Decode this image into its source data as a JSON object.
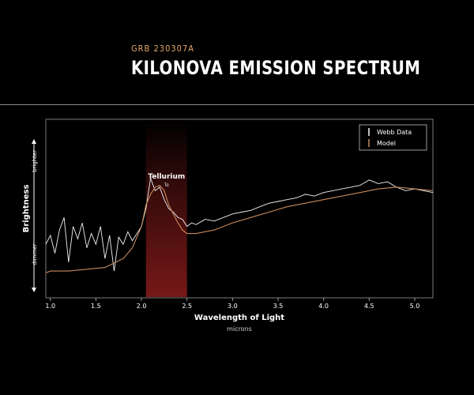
{
  "header": {
    "subtitle": "GRB 230307A",
    "title": "KILONOVA EMISSION SPECTRUM"
  },
  "colors": {
    "background": "#000000",
    "webb_data": "#ffffff",
    "model": "#c98a5c",
    "tellurium_band": "#8b1c1c"
  },
  "chart_data": {
    "type": "line",
    "xlabel": "Wavelength of Light",
    "xlabel_units": "microns",
    "ylabel": "Brightness",
    "ylabel_high": "brighter",
    "ylabel_low": "dimmer",
    "xlim": [
      0.95,
      5.2
    ],
    "ylim": [
      0,
      1
    ],
    "x_ticks": [
      "1.0",
      "1.5",
      "2.0",
      "2.5",
      "3.0",
      "3.5",
      "4.0",
      "4.5",
      "5.0"
    ],
    "grid": false,
    "legend_position": "top-right",
    "annotation": {
      "label": "Tellurium",
      "symbol": "Te",
      "x_range": [
        2.05,
        2.5
      ]
    },
    "series": [
      {
        "name": "Webb Data",
        "x": [
          0.95,
          1.0,
          1.05,
          1.1,
          1.15,
          1.2,
          1.25,
          1.3,
          1.35,
          1.4,
          1.45,
          1.5,
          1.55,
          1.6,
          1.65,
          1.7,
          1.75,
          1.8,
          1.85,
          1.9,
          1.95,
          2.0,
          2.05,
          2.1,
          2.15,
          2.2,
          2.25,
          2.3,
          2.35,
          2.4,
          2.45,
          2.5,
          2.55,
          2.6,
          2.7,
          2.8,
          2.9,
          3.0,
          3.1,
          3.2,
          3.3,
          3.4,
          3.5,
          3.6,
          3.7,
          3.8,
          3.9,
          4.0,
          4.1,
          4.2,
          4.3,
          4.4,
          4.5,
          4.6,
          4.7,
          4.8,
          4.9,
          5.0,
          5.1,
          5.2
        ],
        "y": [
          0.3,
          0.35,
          0.25,
          0.38,
          0.45,
          0.2,
          0.4,
          0.33,
          0.42,
          0.28,
          0.36,
          0.3,
          0.4,
          0.22,
          0.35,
          0.15,
          0.34,
          0.3,
          0.37,
          0.32,
          0.36,
          0.4,
          0.5,
          0.67,
          0.6,
          0.62,
          0.55,
          0.5,
          0.48,
          0.45,
          0.44,
          0.4,
          0.42,
          0.41,
          0.44,
          0.43,
          0.45,
          0.47,
          0.48,
          0.49,
          0.51,
          0.53,
          0.54,
          0.55,
          0.56,
          0.58,
          0.57,
          0.59,
          0.6,
          0.61,
          0.62,
          0.63,
          0.66,
          0.64,
          0.65,
          0.62,
          0.6,
          0.61,
          0.6,
          0.59
        ]
      },
      {
        "name": "Model",
        "x": [
          0.95,
          1.0,
          1.2,
          1.4,
          1.6,
          1.8,
          1.9,
          2.0,
          2.05,
          2.1,
          2.15,
          2.2,
          2.25,
          2.3,
          2.35,
          2.4,
          2.45,
          2.5,
          2.6,
          2.8,
          3.0,
          3.2,
          3.4,
          3.6,
          3.8,
          4.0,
          4.2,
          4.4,
          4.6,
          4.8,
          5.0,
          5.2
        ],
        "y": [
          0.14,
          0.15,
          0.15,
          0.16,
          0.17,
          0.22,
          0.28,
          0.4,
          0.52,
          0.58,
          0.62,
          0.63,
          0.6,
          0.52,
          0.47,
          0.42,
          0.38,
          0.36,
          0.36,
          0.38,
          0.42,
          0.45,
          0.48,
          0.51,
          0.53,
          0.55,
          0.57,
          0.59,
          0.61,
          0.62,
          0.61,
          0.6
        ]
      }
    ]
  }
}
